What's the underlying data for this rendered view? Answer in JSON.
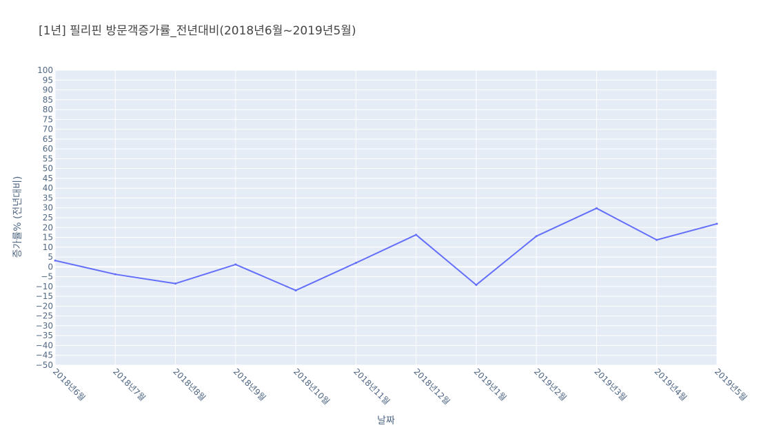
{
  "chart_data": {
    "type": "line",
    "title": "[1년] 필리핀 방문객증가률_전년대비(2018년6월~2019년5월)",
    "xlabel": "날짜",
    "ylabel": "증가률% (전년대비)",
    "categories": [
      "2018년6월",
      "2018년7월",
      "2018년8월",
      "2018년9월",
      "2018년10월",
      "2018년11월",
      "2018년12월",
      "2019년1월",
      "2019년2월",
      "2019년3월",
      "2019년4월",
      "2019년5월"
    ],
    "series": [
      {
        "values": [
          3.2,
          -3.8,
          -8.5,
          1.2,
          -12.0,
          2.0,
          16.3,
          -9.2,
          15.6,
          29.8,
          13.7,
          21.9
        ]
      }
    ],
    "ylim": [
      -50,
      100
    ],
    "ytick_step": 5,
    "grid": true,
    "colors": {
      "line": "#636efa",
      "plot_bg": "#e5ecf6",
      "grid": "#ffffff"
    }
  }
}
